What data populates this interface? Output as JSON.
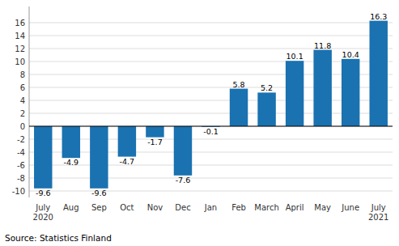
{
  "chart_data": {
    "type": "bar",
    "categories": [
      "July\n2020",
      "Aug",
      "Sep",
      "Oct",
      "Nov",
      "Dec",
      "Jan",
      "Feb",
      "March",
      "April",
      "May",
      "June",
      "July\n2021"
    ],
    "values": [
      -9.6,
      -4.9,
      -9.6,
      -4.7,
      -1.7,
      -7.6,
      -0.1,
      5.8,
      5.2,
      10.1,
      11.8,
      10.4,
      16.3
    ],
    "color": "#1a72b0",
    "ylim": [
      -11,
      18.5
    ],
    "yticks": [
      -10,
      -8,
      -6,
      -4,
      -2,
      0,
      2,
      4,
      6,
      8,
      10,
      12,
      14,
      16
    ],
    "grid": true,
    "data_labels": true,
    "annotations": [
      "Source: Statistics Finland"
    ]
  }
}
